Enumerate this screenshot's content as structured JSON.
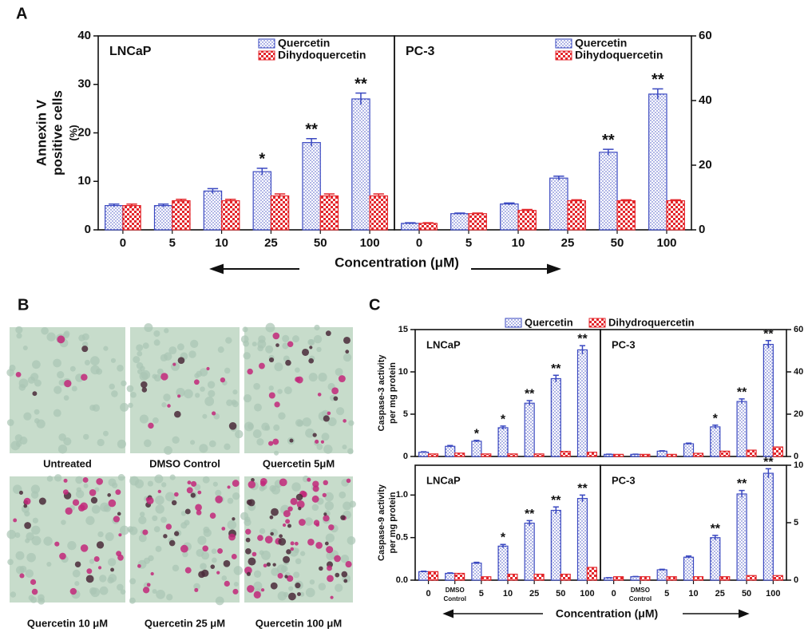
{
  "panel_labels": [
    "A",
    "B",
    "C"
  ],
  "shared_x_labels": [
    "Concentration (μM)",
    "Concentration (μM)"
  ],
  "images": [
    {
      "caption": "Untreated"
    },
    {
      "caption": "DMSO Control"
    },
    {
      "caption": "Quercetin 5μM"
    },
    {
      "caption": "Quercetin 10  μM"
    },
    {
      "caption": "Quercetin 25  μM"
    },
    {
      "caption": "Quercetin 100 μM"
    }
  ],
  "chart_data": [
    {
      "type": "bar",
      "title": "LNCaP",
      "ylabel": [
        "Annexin V",
        "positive cells",
        "(%)"
      ],
      "categories": [
        "0",
        "5",
        "10",
        "25",
        "50",
        "100"
      ],
      "y_axis": "left",
      "legend": "upper right",
      "ylim": [
        0,
        40
      ],
      "yticks": [
        0,
        10,
        20,
        30,
        40
      ],
      "series": [
        {
          "name": "Quercetin",
          "color": "#3a48c0",
          "pattern": "dots",
          "values": [
            5,
            5,
            8,
            12,
            18,
            27
          ],
          "errors": [
            0.3,
            0.3,
            0.5,
            0.7,
            0.8,
            1.2
          ]
        },
        {
          "name": "Dihydoquercetin",
          "color": "#e3262b",
          "pattern": "checker",
          "values": [
            5,
            6,
            6,
            7,
            7,
            7
          ],
          "errors": [
            0.3,
            0.3,
            0.3,
            0.4,
            0.4,
            0.4
          ]
        }
      ],
      "annotations": [
        null,
        null,
        null,
        "*",
        "**",
        "**"
      ]
    },
    {
      "type": "bar",
      "title": "PC-3",
      "categories": [
        "0",
        "5",
        "10",
        "25",
        "50",
        "100"
      ],
      "y_axis": "right",
      "legend": "upper right",
      "ylim": [
        0,
        60
      ],
      "yticks": [
        0,
        20,
        40,
        60
      ],
      "series": [
        {
          "name": "Quercetin",
          "color": "#3a48c0",
          "pattern": "dots",
          "values": [
            2,
            5,
            8,
            16,
            24,
            42
          ],
          "errors": [
            0.2,
            0.2,
            0.3,
            0.6,
            0.9,
            1.6
          ]
        },
        {
          "name": "Dihydoquercetin",
          "color": "#e3262b",
          "pattern": "checker",
          "values": [
            2,
            5,
            6,
            9,
            9,
            9
          ],
          "errors": [
            0.2,
            0.2,
            0.3,
            0.3,
            0.3,
            0.3
          ]
        }
      ],
      "annotations": [
        null,
        null,
        null,
        null,
        "**",
        "**"
      ]
    },
    {
      "type": "bar",
      "title": "LNCaP",
      "ylabel": [
        "Caspase-3 activity",
        "per mg protein"
      ],
      "y_axis": "left",
      "legend": "top",
      "ylim": [
        0,
        15
      ],
      "yticks": [
        0,
        5,
        10,
        15
      ],
      "series": [
        {
          "name": "Quercetin",
          "color": "#3a48c0",
          "pattern": "dots",
          "values": [
            0.5,
            1.2,
            1.8,
            3.4,
            6.3,
            9.2,
            12.6
          ],
          "errors": [
            0.05,
            0.1,
            0.1,
            0.2,
            0.3,
            0.4,
            0.5
          ]
        },
        {
          "name": "Dihydroquercetin",
          "color": "#e3262b",
          "pattern": "checker",
          "values": [
            0.3,
            0.4,
            0.3,
            0.3,
            0.3,
            0.6,
            0.5
          ]
        }
      ],
      "annotations": [
        null,
        null,
        "*",
        "*",
        "**",
        "**",
        "**"
      ]
    },
    {
      "type": "bar",
      "title": "PC-3",
      "y_axis": "right",
      "ylim": [
        0,
        60
      ],
      "yticks": [
        0,
        20,
        40,
        60
      ],
      "series": [
        {
          "color": "#3a48c0",
          "pattern": "dots",
          "values": [
            1,
            1,
            2.5,
            6,
            14,
            26,
            53
          ],
          "errors": [
            0.1,
            0.1,
            0.2,
            0.3,
            0.8,
            1.2,
            1.8
          ]
        },
        {
          "color": "#e3262b",
          "pattern": "checker",
          "values": [
            1,
            1,
            1,
            1.5,
            2.5,
            3,
            4.5
          ]
        }
      ],
      "annotations": [
        null,
        null,
        null,
        null,
        "*",
        "**",
        "**"
      ]
    },
    {
      "type": "bar",
      "title": "LNCaP",
      "ylabel": [
        "Caspase-9 activity",
        "per mg protein"
      ],
      "y_axis": "left",
      "categories": [
        "0",
        "DMSO Control",
        "5",
        "10",
        "25",
        "50",
        "100"
      ],
      "ylim": [
        0,
        1.35
      ],
      "yticks": [
        {
          "value": 0,
          "label": "0.0"
        },
        {
          "value": 0.5,
          "label": "0.5"
        },
        {
          "value": 1,
          "label": "1.0"
        }
      ],
      "series": [
        {
          "color": "#3a48c0",
          "pattern": "dots",
          "values": [
            0.1,
            0.08,
            0.2,
            0.4,
            0.67,
            0.82,
            0.96
          ],
          "errors": [
            0.005,
            0.005,
            0.01,
            0.02,
            0.03,
            0.04,
            0.04
          ]
        },
        {
          "color": "#e3262b",
          "pattern": "checker",
          "values": [
            0.1,
            0.08,
            0.04,
            0.07,
            0.07,
            0.07,
            0.15
          ]
        }
      ],
      "annotations": [
        null,
        null,
        null,
        "*",
        "**",
        "**",
        "**"
      ]
    },
    {
      "type": "bar",
      "title": "PC-3",
      "y_axis": "right",
      "categories": [
        "0",
        "DMSO Control",
        "5",
        "10",
        "25",
        "50",
        "100"
      ],
      "ylim": [
        0,
        10
      ],
      "yticks": [
        0,
        5,
        10
      ],
      "series": [
        {
          "color": "#3a48c0",
          "pattern": "dots",
          "values": [
            0.2,
            0.3,
            0.9,
            2,
            3.7,
            7.5,
            9.3
          ],
          "errors": [
            0.02,
            0.02,
            0.05,
            0.1,
            0.2,
            0.3,
            0.4
          ]
        },
        {
          "color": "#e3262b",
          "pattern": "checker",
          "values": [
            0.3,
            0.3,
            0.3,
            0.3,
            0.3,
            0.4,
            0.4
          ]
        }
      ],
      "annotations": [
        null,
        null,
        null,
        null,
        "**",
        "**",
        "**"
      ]
    }
  ]
}
